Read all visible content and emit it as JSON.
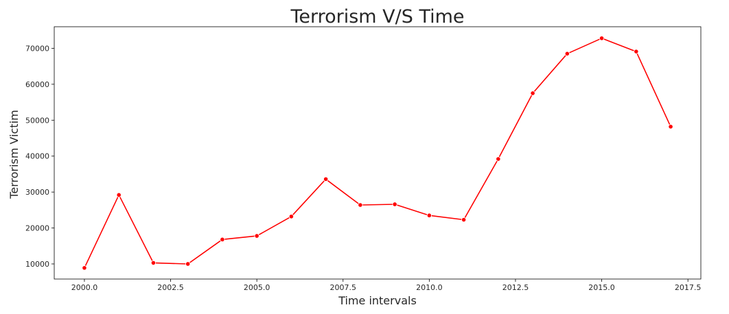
{
  "chart_data": {
    "type": "line",
    "title": "Terrorism V/S Time",
    "xlabel": "Time intervals",
    "ylabel": "Terrorism Victim",
    "xlim": [
      1999.125,
      2017.875
    ],
    "ylim": [
      5800,
      76000
    ],
    "xticks": [
      2000.0,
      2002.5,
      2005.0,
      2007.5,
      2010.0,
      2012.5,
      2015.0,
      2017.5
    ],
    "xtick_labels": [
      "2000.0",
      "2002.5",
      "2005.0",
      "2007.5",
      "2010.0",
      "2012.5",
      "2015.0",
      "2017.5"
    ],
    "yticks": [
      10000,
      20000,
      30000,
      40000,
      50000,
      60000,
      70000
    ],
    "ytick_labels": [
      "10000",
      "20000",
      "30000",
      "40000",
      "50000",
      "60000",
      "70000"
    ],
    "grid": false,
    "legend": "none",
    "series": [
      {
        "color": "#ff0000",
        "marker": "circle",
        "x": [
          2000,
          2001,
          2002,
          2003,
          2004,
          2005,
          2006,
          2007,
          2008,
          2009,
          2010,
          2011,
          2012,
          2013,
          2014,
          2015,
          2016,
          2017
        ],
        "y": [
          8900,
          29200,
          10300,
          10000,
          16800,
          17800,
          23200,
          33600,
          26400,
          26600,
          23500,
          22300,
          39200,
          57500,
          68500,
          72800,
          69100,
          48200
        ]
      }
    ]
  }
}
